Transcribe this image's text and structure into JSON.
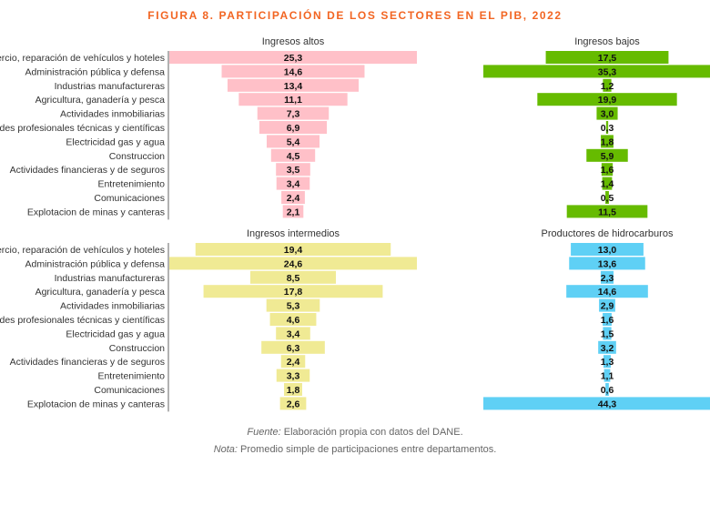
{
  "title": "FIGURA 8. PARTICIPACIÓN DE LOS SECTORES EN EL PIB, 2022",
  "chart_data": [
    {
      "type": "bar",
      "title": "Ingresos altos",
      "color": "#ffc0c8",
      "categories": [
        "Comercio, reparación de vehículos y hoteles",
        "Administración pública y defensa",
        "Industrias manufactureras",
        "Agricultura, ganadería y pesca",
        "Actividades inmobiliarias",
        "Actividades profesionales técnicas y científicas",
        "Electricidad gas y agua",
        "Construccion",
        "Actividades financieras y de seguros",
        "Entretenimiento",
        "Comunicaciones",
        "Explotacion de minas y canteras"
      ],
      "values": [
        25.3,
        14.6,
        13.4,
        11.1,
        7.3,
        6.9,
        5.4,
        4.5,
        3.5,
        3.4,
        2.4,
        2.1
      ]
    },
    {
      "type": "bar",
      "title": "Ingresos bajos",
      "color": "#66bb00",
      "categories": [
        "Comercio, reparación de vehículos y hoteles",
        "Administración pública y defensa",
        "Industrias manufactureras",
        "Agricultura, ganadería y pesca",
        "Actividades inmobiliarias",
        "Actividades profesionales técnicas y científicas",
        "Electricidad gas y agua",
        "Construccion",
        "Actividades financieras y de seguros",
        "Entretenimiento",
        "Comunicaciones",
        "Explotacion de minas y canteras"
      ],
      "values": [
        17.5,
        35.3,
        1.2,
        19.9,
        3.0,
        0.3,
        1.8,
        5.9,
        1.6,
        1.4,
        0.5,
        11.5
      ]
    },
    {
      "type": "bar",
      "title": "Ingresos intermedios",
      "color": "#f0ea94",
      "categories": [
        "Comercio, reparación de vehículos y hoteles",
        "Administración pública y defensa",
        "Industrias manufactureras",
        "Agricultura, ganadería y pesca",
        "Actividades inmobiliarias",
        "Actividades profesionales técnicas y científicas",
        "Electricidad gas y agua",
        "Construccion",
        "Actividades financieras y de seguros",
        "Entretenimiento",
        "Comunicaciones",
        "Explotacion de minas y canteras"
      ],
      "values": [
        19.4,
        24.6,
        8.5,
        17.8,
        5.3,
        4.6,
        3.4,
        6.3,
        2.4,
        3.3,
        1.8,
        2.6
      ]
    },
    {
      "type": "bar",
      "title": "Productores de hidrocarburos",
      "color": "#5fd0f5",
      "categories": [
        "Comercio, reparación de vehículos y hoteles",
        "Administración pública y defensa",
        "Industrias manufactureras",
        "Agricultura, ganadería y pesca",
        "Actividades inmobiliarias",
        "Actividades profesionales técnicas y científicas",
        "Electricidad gas y agua",
        "Construccion",
        "Actividades financieras y de seguros",
        "Entretenimiento",
        "Comunicaciones",
        "Explotacion de minas y canteras"
      ],
      "values": [
        13.0,
        13.6,
        2.3,
        14.6,
        2.9,
        1.6,
        1.5,
        3.2,
        1.3,
        1.1,
        0.6,
        44.3
      ]
    }
  ],
  "notes": {
    "source_label": "Fuente:",
    "source_text": " Elaboración propia con datos del DANE.",
    "note_label": "Nota:",
    "note_text": " Promedio simple de participaciones entre departamentos."
  }
}
